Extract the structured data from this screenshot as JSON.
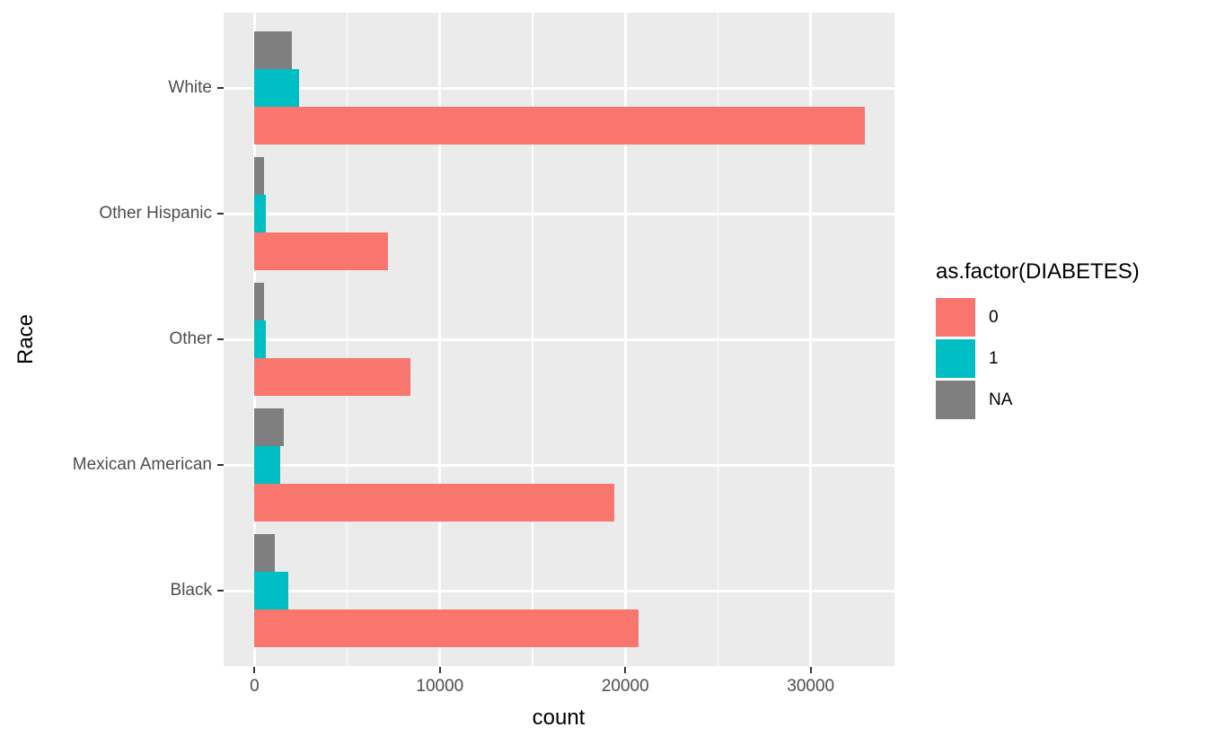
{
  "chart_data": {
    "type": "bar",
    "orientation": "horizontal",
    "title": "",
    "xlabel": "count",
    "ylabel": "Race",
    "categories": [
      "White",
      "Other Hispanic",
      "Other",
      "Mexican American",
      "Black"
    ],
    "series": [
      {
        "name": "0",
        "color": "#F8766D",
        "values": [
          32900,
          7200,
          8400,
          19400,
          20700
        ]
      },
      {
        "name": "1",
        "color": "#00BFC4",
        "values": [
          2400,
          600,
          600,
          1400,
          1800
        ]
      },
      {
        "name": "NA",
        "color": "#7F7F7F",
        "values": [
          2000,
          500,
          500,
          1600,
          1100
        ]
      }
    ],
    "bar_row_order_top_to_bottom": [
      "NA",
      "1",
      "0"
    ],
    "x_ticks": [
      0,
      10000,
      20000,
      30000
    ],
    "x_minor_ticks": [
      5000,
      15000,
      25000
    ],
    "xlim": [
      -1667,
      34520
    ],
    "legend": {
      "title": "as.factor(DIABETES)",
      "position": "right",
      "entries": [
        "0",
        "1",
        "NA"
      ]
    },
    "grid": true,
    "colors": {
      "panel_bg": "#EBEBEB",
      "grid": "#FFFFFF",
      "axis_text": "#4D4D4D",
      "axis_title": "#000000",
      "tick_mark": "#333333"
    }
  }
}
